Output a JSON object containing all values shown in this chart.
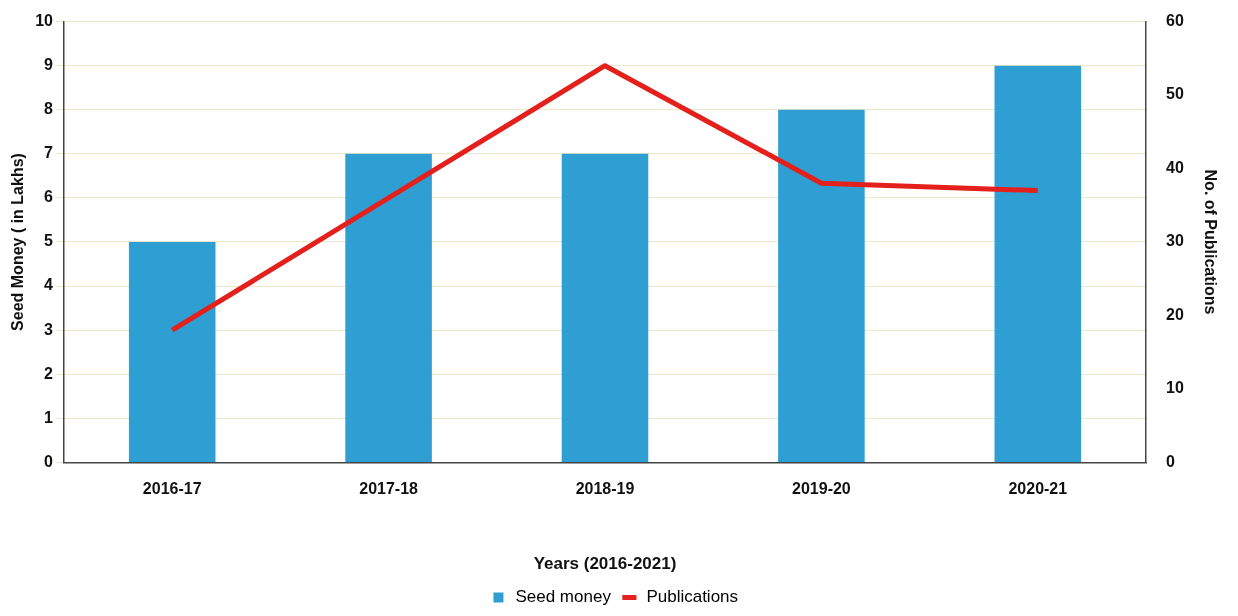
{
  "chart_data": {
    "type": "bar",
    "xlabel": "Years (2016-2021)",
    "ylabel": "Seed Money ( in Lakhs)",
    "y2label": "No. of Publications",
    "categories": [
      "2016-17",
      "2017-18",
      "2018-19",
      "2019-20",
      "2020-21"
    ],
    "series": [
      {
        "name": "Seed money",
        "color": "#2f9fd3",
        "values": [
          5,
          7,
          7,
          8,
          9
        ]
      },
      {
        "name": "Publications",
        "type": "line",
        "axis": "y2",
        "color": "#e3201b",
        "values": [
          18,
          36,
          54,
          38,
          37
        ]
      }
    ],
    "ylim": [
      0,
      10
    ],
    "yticks": [
      0,
      1,
      2,
      3,
      4,
      5,
      6,
      7,
      8,
      9,
      10
    ],
    "y2lim": [
      0,
      60
    ],
    "y2ticks": [
      0,
      10,
      20,
      30,
      40,
      50,
      60
    ],
    "grid": "y",
    "legend": "bottom",
    "marker": "none"
  }
}
